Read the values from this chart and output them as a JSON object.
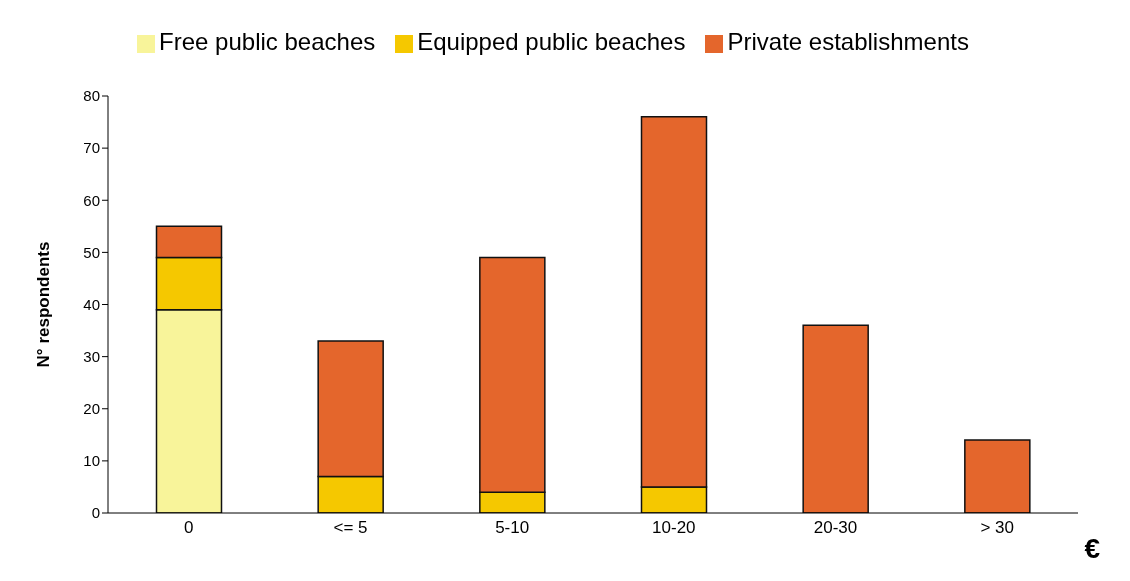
{
  "chart_data": {
    "type": "bar",
    "stacked": true,
    "xlabel": "€",
    "ylabel": "N° respondents",
    "categories": [
      "0",
      "<= 5",
      "5-10",
      "10-20",
      "20-30",
      "> 30"
    ],
    "series": [
      {
        "name": "Free public beaches",
        "color": "#f8f49a",
        "values": [
          39,
          0,
          0,
          0,
          0,
          0
        ]
      },
      {
        "name": "Equipped public beaches",
        "color": "#f5c800",
        "values": [
          10,
          7,
          4,
          5,
          0,
          0
        ]
      },
      {
        "name": "Private establishments",
        "color": "#e4662c",
        "values": [
          6,
          26,
          45,
          71,
          36,
          14
        ]
      }
    ],
    "ylim": [
      0,
      80
    ],
    "yticks": [
      0,
      10,
      20,
      30,
      40,
      50,
      60,
      70,
      80
    ],
    "grid": false,
    "legend": "top"
  }
}
